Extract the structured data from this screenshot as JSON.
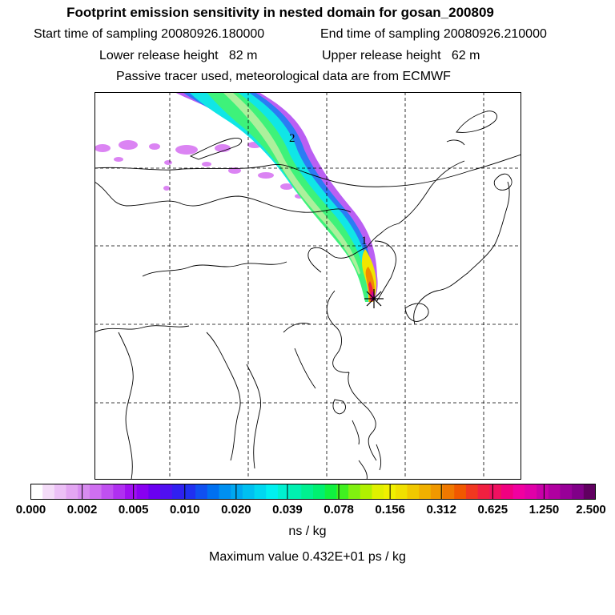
{
  "header": {
    "title": "Footprint emission sensitivity in nested domain for gosan_200809",
    "start_time": "Start time of sampling 20080926.180000",
    "end_time": "End time of sampling 20080926.210000",
    "lower_release": "Lower release height   82 m",
    "upper_release": "Upper release height   62 m",
    "tracer_note": "Passive tracer used, meteorological data are from ECMWF"
  },
  "map": {
    "plume_labels": [
      "2",
      "1"
    ],
    "release_marker": "*"
  },
  "colorbar": {
    "ticks": [
      "0.000",
      "0.002",
      "0.005",
      "0.010",
      "0.020",
      "0.039",
      "0.078",
      "0.156",
      "0.312",
      "0.625",
      "1.250",
      "2.500"
    ],
    "colors": [
      "#ffffff",
      "#f4dcf8",
      "#ecc0f6",
      "#e3a6f2",
      "#d88cf0",
      "#cf6ff0",
      "#c050f0",
      "#b030f0",
      "#a010f0",
      "#8800f0",
      "#6a00f0",
      "#5010f0",
      "#3020f0",
      "#2030f0",
      "#1050f0",
      "#0070f0",
      "#0090f0",
      "#00a8f0",
      "#00c0f0",
      "#00d8f0",
      "#00f0f0",
      "#00f0d0",
      "#00f0b0",
      "#00f090",
      "#00f070",
      "#10f040",
      "#40f020",
      "#80f010",
      "#b0f000",
      "#e0f000",
      "#f0f000",
      "#f0e000",
      "#f0c800",
      "#f0b000",
      "#f09800",
      "#f07800",
      "#f05800",
      "#f03820",
      "#f02040",
      "#f01060",
      "#f00080",
      "#f000a0",
      "#e000a8",
      "#c800a8",
      "#b000a0",
      "#980098",
      "#800088",
      "#600060"
    ],
    "unit": "ns / kg"
  },
  "max_value": "Maximum value  0.432E+01 ps / kg"
}
